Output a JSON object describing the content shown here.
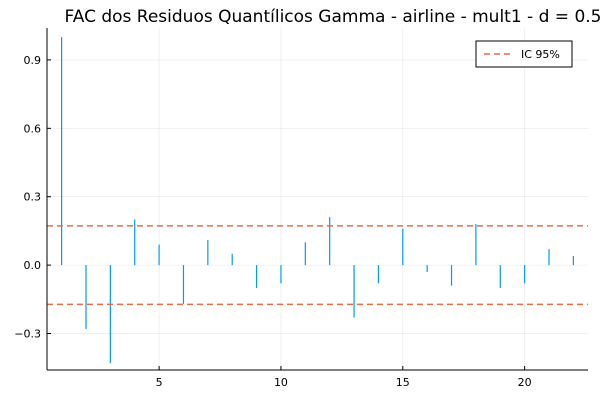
{
  "chart_data": {
    "type": "bar",
    "title": "FAC dos Residuos Quantílicos Gamma - airline - mult1 - d = 0.5",
    "xlabel": "",
    "ylabel": "",
    "x": [
      1,
      2,
      3,
      4,
      5,
      6,
      7,
      8,
      9,
      10,
      11,
      12,
      13,
      14,
      15,
      16,
      17,
      18,
      19,
      20,
      21,
      22
    ],
    "values": [
      1.0,
      -0.28,
      -0.43,
      0.2,
      0.09,
      -0.17,
      0.11,
      0.05,
      -0.1,
      -0.08,
      0.1,
      0.21,
      -0.23,
      -0.08,
      0.16,
      -0.03,
      -0.09,
      0.18,
      -0.1,
      -0.08,
      0.07,
      0.04
    ],
    "xlim": [
      0.4,
      22.6
    ],
    "ylim": [
      -0.46,
      1.04
    ],
    "xticks": [
      5,
      10,
      15,
      20
    ],
    "xtick_labels": [
      "5",
      "10",
      "15",
      "20"
    ],
    "yticks": [
      -0.3,
      0.0,
      0.3,
      0.6,
      0.9
    ],
    "ytick_labels": [
      "−0.3",
      "0.0",
      "0.3",
      "0.6",
      "0.9"
    ],
    "confidence_interval": {
      "name": "IC 95%",
      "value": 0.172,
      "color": "#e26f46"
    },
    "bar_color": "#009af9",
    "grid": true,
    "legend_position": "top-right"
  }
}
